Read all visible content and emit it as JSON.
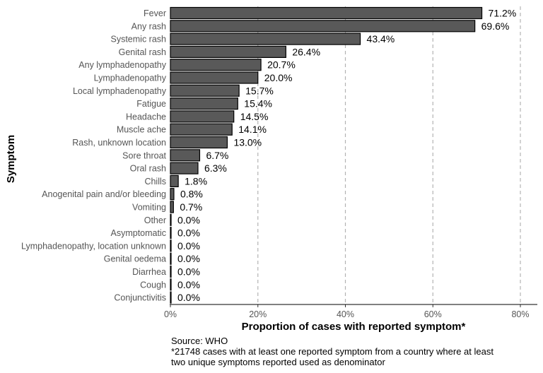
{
  "chart_data": {
    "type": "bar",
    "orientation": "horizontal",
    "categories": [
      "Fever",
      "Any rash",
      "Systemic rash",
      "Genital rash",
      "Any lymphadenopathy",
      "Lymphadenopathy",
      "Local lymphadenopathy",
      "Fatigue",
      "Headache",
      "Muscle ache",
      "Rash, unknown location",
      "Sore throat",
      "Oral rash",
      "Chills",
      "Anogenital pain and/or bleeding",
      "Vomiting",
      "Other",
      "Asymptomatic",
      "Lymphadenopathy, location unknown",
      "Genital oedema",
      "Diarrhea",
      "Cough",
      "Conjunctivitis"
    ],
    "values": [
      71.2,
      69.6,
      43.4,
      26.4,
      20.7,
      20.0,
      15.7,
      15.4,
      14.5,
      14.1,
      13.0,
      6.7,
      6.3,
      1.8,
      0.8,
      0.7,
      0.0,
      0.0,
      0.0,
      0.0,
      0.0,
      0.0,
      0.0
    ],
    "value_labels": [
      "71.2%",
      "69.6%",
      "43.4%",
      "26.4%",
      "20.7%",
      "20.0%",
      "15.7%",
      "15.4%",
      "14.5%",
      "14.1%",
      "13.0%",
      "6.7%",
      "6.3%",
      "1.8%",
      "0.8%",
      "0.7%",
      "0.0%",
      "0.0%",
      "0.0%",
      "0.0%",
      "0.0%",
      "0.0%",
      "0.0%"
    ],
    "xlabel": "Proportion of cases with reported symptom*",
    "ylabel": "Symptom",
    "xlim": [
      0,
      80
    ],
    "xticks": [
      0,
      20,
      40,
      60,
      80
    ],
    "xtick_labels": [
      "0%",
      "20%",
      "40%",
      "60%",
      "80%"
    ],
    "grid": "vertical dashed at 20, 40, 60, 80",
    "colors": {
      "bar": "#595959",
      "bar_outline": "#000000",
      "grid": "#b3b3b3"
    }
  },
  "caption": {
    "source": "Source: WHO",
    "note_line1": "*21748 cases with at least one reported symptom from a country where at least",
    "note_line2": "two unique symptoms reported used as denominator"
  }
}
